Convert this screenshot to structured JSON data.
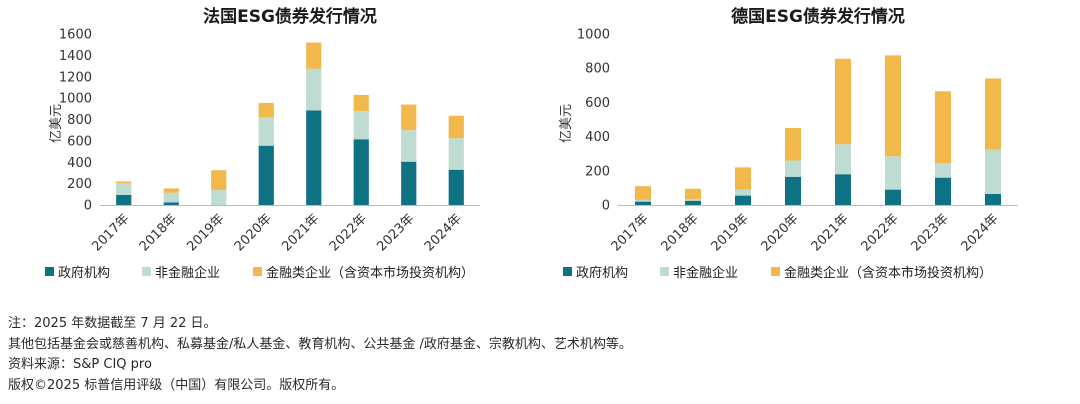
{
  "colors": {
    "government": "#0e7184",
    "non_financial": "#bfdcd2",
    "financial": "#f2b84b",
    "axis": "#bbbbbb"
  },
  "chart_data": [
    {
      "type": "bar",
      "stacked": true,
      "title": "法国ESG债券发行情况",
      "ylabel": "亿美元",
      "xlabel": "",
      "ylim": [
        0,
        1600
      ],
      "yticks": [
        0,
        200,
        400,
        600,
        800,
        1000,
        1200,
        1400,
        1600
      ],
      "categories": [
        "2017年",
        "2018年",
        "2019年",
        "2020年",
        "2021年",
        "2022年",
        "2023年",
        "2024年"
      ],
      "series": [
        {
          "name": "政府机构",
          "color": "#0e7184",
          "values": [
            95,
            25,
            0,
            555,
            885,
            615,
            405,
            330
          ]
        },
        {
          "name": "非金融企业",
          "color": "#bfdcd2",
          "values": [
            110,
            90,
            140,
            265,
            390,
            265,
            295,
            295
          ]
        },
        {
          "name": "金融类企业（含资本市场投资机构）",
          "color": "#f2b84b",
          "values": [
            15,
            40,
            185,
            135,
            245,
            150,
            240,
            210
          ]
        }
      ],
      "legend_position": "bottom"
    },
    {
      "type": "bar",
      "stacked": true,
      "title": "德国ESG债券发行情况",
      "ylabel": "亿美元",
      "xlabel": "",
      "ylim": [
        0,
        1000
      ],
      "yticks": [
        0,
        200,
        400,
        600,
        800,
        1000
      ],
      "categories": [
        "2017年",
        "2018年",
        "2019年",
        "2020年",
        "2021年",
        "2022年",
        "2023年",
        "2024年"
      ],
      "series": [
        {
          "name": "政府机构",
          "color": "#0e7184",
          "values": [
            20,
            25,
            55,
            165,
            180,
            90,
            160,
            65
          ]
        },
        {
          "name": "非金融企业",
          "color": "#bfdcd2",
          "values": [
            10,
            10,
            35,
            95,
            175,
            195,
            85,
            260
          ]
        },
        {
          "name": "金融类企业（含资本市场投资机构）",
          "color": "#f2b84b",
          "values": [
            80,
            60,
            130,
            190,
            500,
            590,
            420,
            415
          ]
        }
      ],
      "legend_position": "bottom"
    }
  ],
  "notes": [
    "注：2025 年数据截至 7 月 22 日。",
    "其他包括基金会或慈善机构、私募基金/私人基金、教育机构、公共基金 /政府基金、宗教机构、艺术机构等。",
    "资料来源：S&P CIQ pro",
    "版权©2025 标普信用评级（中国）有限公司。版权所有。"
  ]
}
